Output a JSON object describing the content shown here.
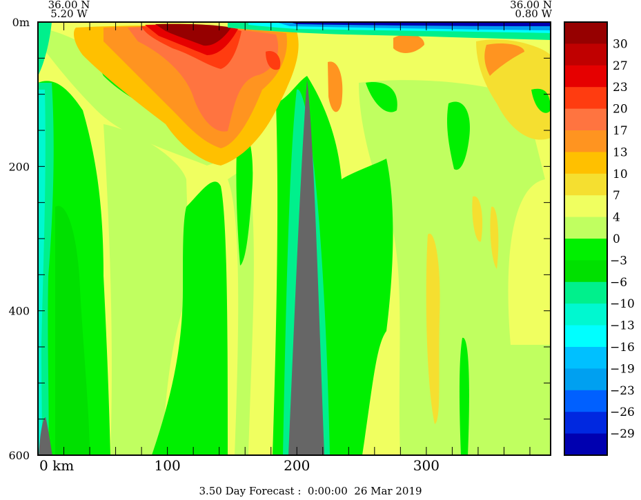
{
  "chart_data": {
    "type": "heatmap",
    "subtype": "filled-contour vertical section",
    "start_point": {
      "lat": "36.00 N",
      "lon": "5.20 W"
    },
    "end_point": {
      "lat": "36.00 N",
      "lon": "0.80 W"
    },
    "x_axis": {
      "label": "km",
      "ticks": [
        0,
        100,
        200,
        300
      ],
      "minor_step": 20,
      "range": [
        0,
        396
      ]
    },
    "y_axis": {
      "label": "m",
      "ticks": [
        0,
        200,
        400,
        600
      ],
      "top_label": "0m",
      "minor_step": 50,
      "range": [
        0,
        600
      ],
      "inverted": true
    },
    "footer": "3.50 Day Forecast :  0:00:00  26 Mar 2019",
    "colorbar": {
      "labels": [
        "30",
        "27",
        "23",
        "20",
        "17",
        "13",
        "10",
        "7",
        "4",
        "0",
        "−3",
        "−6",
        "−10",
        "−13",
        "−16",
        "−19",
        "−23",
        "−26",
        "−29"
      ],
      "colors": [
        "#960000",
        "#c00000",
        "#e60000",
        "#ff3c10",
        "#ff7440",
        "#ff9420",
        "#ffc000",
        "#f5df30",
        "#f0ff60",
        "#c0ff60",
        "#00f000",
        "#00e000",
        "#00f08c",
        "#00f8d0",
        "#00ffff",
        "#00c0ff",
        "#00a0f0",
        "#0060ff",
        "#0028e0",
        "#0000b0"
      ]
    },
    "field_summary": {
      "background_band": "4 to 7",
      "positive_max_region": "above 30 near surface at 80-150 km",
      "negative_region": "below -29 at surface beyond 200 km",
      "topography_color": "#666666"
    }
  }
}
